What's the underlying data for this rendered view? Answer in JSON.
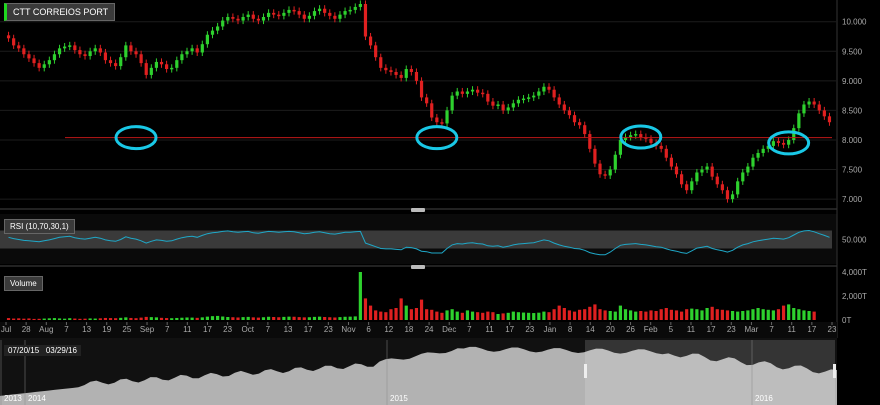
{
  "chart_data": {
    "type": "candlestick",
    "title": "CTT CORREIOS PORT",
    "price_axis": {
      "min": 6.9,
      "max": 10.3,
      "ticks": [
        "10.000",
        "9.500",
        "9.000",
        "8.500",
        "8.000",
        "7.500",
        "7.000"
      ],
      "tick_values": [
        10,
        9.5,
        9,
        8.5,
        8,
        7.5,
        7
      ]
    },
    "x_ticks": [
      "Jul",
      "28",
      "Aug",
      "7",
      "13",
      "19",
      "25",
      "Sep",
      "7",
      "11",
      "17",
      "23",
      "Oct",
      "7",
      "13",
      "17",
      "23",
      "Nov",
      "6",
      "12",
      "18",
      "24",
      "Dec",
      "7",
      "11",
      "17",
      "23",
      "Jan",
      "8",
      "14",
      "20",
      "26",
      "Feb",
      "5",
      "11",
      "17",
      "23",
      "Mar",
      "7",
      "11",
      "17",
      "23"
    ],
    "support_level": 8.04,
    "highlight_circles": [
      8.04,
      8.04,
      8.05,
      7.95
    ],
    "closes": [
      9.72,
      9.6,
      9.55,
      9.45,
      9.38,
      9.3,
      9.22,
      9.28,
      9.35,
      9.45,
      9.55,
      9.58,
      9.6,
      9.52,
      9.45,
      9.42,
      9.5,
      9.55,
      9.48,
      9.35,
      9.3,
      9.25,
      9.4,
      9.6,
      9.5,
      9.45,
      9.3,
      9.1,
      9.22,
      9.32,
      9.28,
      9.2,
      9.22,
      9.35,
      9.45,
      9.5,
      9.55,
      9.48,
      9.62,
      9.78,
      9.85,
      9.92,
      10.02,
      10.08,
      10.05,
      10.02,
      10.08,
      10.12,
      10.05,
      10.02,
      10.08,
      10.15,
      10.12,
      10.1,
      10.15,
      10.2,
      10.18,
      10.12,
      10.05,
      10.1,
      10.18,
      10.22,
      10.15,
      10.1,
      10.05,
      10.12,
      10.18,
      10.2,
      10.25,
      10.3,
      9.75,
      9.6,
      9.4,
      9.22,
      9.18,
      9.15,
      9.1,
      9.05,
      9.2,
      9.15,
      9.0,
      8.72,
      8.62,
      8.38,
      8.3,
      8.28,
      8.5,
      8.75,
      8.82,
      8.78,
      8.82,
      8.85,
      8.8,
      8.78,
      8.65,
      8.58,
      8.6,
      8.5,
      8.55,
      8.62,
      8.68,
      8.7,
      8.72,
      8.75,
      8.82,
      8.9,
      8.85,
      8.72,
      8.6,
      8.5,
      8.42,
      8.3,
      8.25,
      8.1,
      7.85,
      7.6,
      7.42,
      7.4,
      7.5,
      7.75,
      8.0,
      8.05,
      8.08,
      8.1,
      8.05,
      8.02,
      7.95,
      7.9,
      7.85,
      7.7,
      7.55,
      7.42,
      7.25,
      7.15,
      7.3,
      7.45,
      7.5,
      7.55,
      7.38,
      7.25,
      7.15,
      7.0,
      7.08,
      7.3,
      7.45,
      7.55,
      7.7,
      7.78,
      7.85,
      7.9,
      7.98,
      7.95,
      7.92,
      8.0,
      8.2,
      8.45,
      8.6,
      8.65,
      8.6,
      8.5,
      8.4,
      8.3
    ],
    "rsi": {
      "label": "RSI (10,70,30,1)",
      "ticks": [
        "50.000"
      ],
      "values": [
        55,
        52,
        50,
        48,
        47,
        46,
        45,
        47,
        49,
        52,
        55,
        56,
        57,
        54,
        52,
        51,
        53,
        55,
        53,
        49,
        47,
        46,
        50,
        56,
        53,
        51,
        47,
        42,
        46,
        49,
        48,
        46,
        47,
        51,
        54,
        56,
        57,
        55,
        59,
        63,
        65,
        66,
        68,
        69,
        67,
        66,
        67,
        68,
        65,
        64,
        66,
        68,
        67,
        66,
        67,
        68,
        67,
        65,
        63,
        64,
        66,
        67,
        65,
        63,
        62,
        64,
        66,
        66,
        67,
        68,
        42,
        38,
        34,
        30,
        29,
        29,
        28,
        27,
        33,
        32,
        29,
        24,
        23,
        20,
        20,
        20,
        30,
        38,
        41,
        40,
        42,
        43,
        41,
        40,
        36,
        35,
        36,
        33,
        35,
        38,
        40,
        41,
        42,
        43,
        46,
        49,
        47,
        42,
        38,
        35,
        33,
        30,
        29,
        26,
        21,
        18,
        16,
        16,
        22,
        30,
        37,
        39,
        40,
        41,
        39,
        38,
        36,
        34,
        33,
        29,
        26,
        24,
        21,
        19,
        25,
        31,
        33,
        35,
        30,
        27,
        25,
        22,
        26,
        33,
        38,
        41,
        45,
        47,
        49,
        51,
        53,
        52,
        51,
        54,
        60,
        66,
        69,
        70,
        67,
        63,
        59,
        55
      ]
    },
    "volume": {
      "label": "Volume",
      "ticks": [
        "4,000T",
        "2,000T",
        "0T"
      ],
      "max": 4000,
      "values": [
        160,
        120,
        140,
        110,
        130,
        90,
        100,
        120,
        140,
        160,
        130,
        110,
        150,
        120,
        100,
        110,
        130,
        120,
        140,
        170,
        160,
        150,
        180,
        220,
        170,
        150,
        200,
        260,
        240,
        220,
        180,
        160,
        150,
        170,
        190,
        210,
        200,
        180,
        220,
        280,
        320,
        340,
        290,
        250,
        230,
        210,
        240,
        260,
        220,
        200,
        230,
        270,
        250,
        230,
        260,
        280,
        270,
        240,
        220,
        230,
        260,
        280,
        250,
        230,
        210,
        240,
        270,
        280,
        300,
        4000,
        1800,
        1200,
        800,
        700,
        650,
        900,
        1000,
        1800,
        1200,
        900,
        1000,
        1700,
        900,
        850,
        700,
        600,
        800,
        900,
        700,
        600,
        800,
        700,
        650,
        600,
        700,
        650,
        500,
        550,
        600,
        700,
        650,
        620,
        600,
        580,
        610,
        700,
        650,
        900,
        1200,
        1000,
        800,
        700,
        850,
        900,
        1100,
        1300,
        900,
        800,
        750,
        700,
        1200,
        900,
        800,
        700,
        750,
        700,
        800,
        750,
        900,
        1000,
        850,
        800,
        700,
        900,
        950,
        900,
        800,
        1000,
        1100,
        900,
        850,
        800,
        750,
        700,
        750,
        800,
        900,
        1000,
        900,
        850,
        800,
        900,
        1200,
        1300,
        1000,
        900,
        800,
        750,
        700
      ]
    },
    "navigator": {
      "date_from": "07/20/15",
      "date_to": "03/29/16",
      "year_labels": [
        "2013",
        "2014",
        "2015",
        "2016"
      ]
    }
  }
}
